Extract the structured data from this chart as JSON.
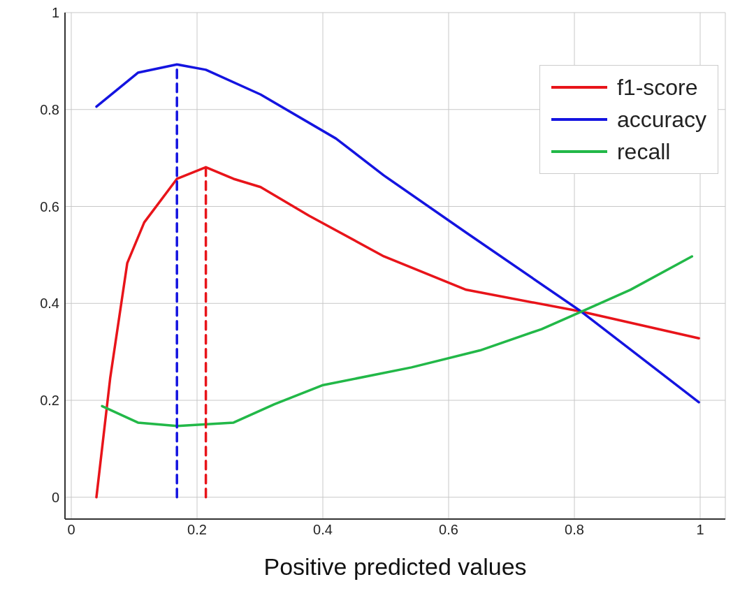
{
  "chart_data": {
    "type": "line",
    "xlabel": "Positive predicted values",
    "xlim": [
      -0.01,
      1.04
    ],
    "ylim": [
      -0.045,
      1.0
    ],
    "xticks": [
      0,
      0.2,
      0.4,
      0.6,
      0.8,
      1
    ],
    "yticks": [
      0,
      0.2,
      0.4,
      0.6,
      0.8,
      1
    ],
    "grid": true,
    "legend": "top right",
    "marker": "none",
    "series": [
      {
        "name": "f1-score",
        "color": "#e8141a",
        "x": [
          0.04,
          0.062,
          0.089,
          0.116,
          0.168,
          0.214,
          0.258,
          0.301,
          0.378,
          0.497,
          0.628,
          0.811,
          0.998
        ],
        "values": [
          0,
          0.247,
          0.483,
          0.567,
          0.657,
          0.681,
          0.657,
          0.64,
          0.581,
          0.497,
          0.428,
          0.383,
          0.328
        ]
      },
      {
        "name": "accuracy",
        "color": "#1414e0",
        "x": [
          0.04,
          0.106,
          0.168,
          0.214,
          0.301,
          0.421,
          0.497,
          0.628,
          0.811,
          0.998
        ],
        "values": [
          0.806,
          0.876,
          0.893,
          0.882,
          0.831,
          0.74,
          0.664,
          0.546,
          0.383,
          0.196
        ]
      },
      {
        "name": "recall",
        "color": "#22b848",
        "x": [
          0.049,
          0.106,
          0.168,
          0.258,
          0.323,
          0.399,
          0.541,
          0.65,
          0.748,
          0.811,
          0.889,
          0.987
        ],
        "values": [
          0.188,
          0.154,
          0.147,
          0.154,
          0.192,
          0.231,
          0.268,
          0.303,
          0.347,
          0.383,
          0.428,
          0.497
        ]
      },
      {
        "color": "#1414e0",
        "line_style": "dashed",
        "x": [
          0.168,
          0.168
        ],
        "values": [
          0,
          0.893
        ]
      },
      {
        "color": "#e8141a",
        "line_style": "dashed",
        "x": [
          0.214,
          0.214
        ],
        "values": [
          0,
          0.681
        ]
      }
    ]
  }
}
